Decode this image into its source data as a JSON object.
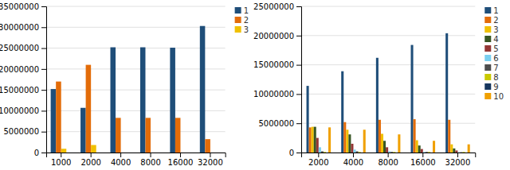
{
  "chart_data": [
    {
      "type": "bar",
      "categories": [
        1000,
        2000,
        4000,
        8000,
        16000,
        32000
      ],
      "series": [
        {
          "name": "1",
          "color": "#1F4E79",
          "values": [
            15200000,
            10700000,
            25200000,
            25200000,
            25100000,
            30300000
          ]
        },
        {
          "name": "2",
          "color": "#E36C09",
          "values": [
            17000000,
            21000000,
            8300000,
            8300000,
            8300000,
            3200000
          ]
        },
        {
          "name": "3",
          "color": "#F0C000",
          "values": [
            900000,
            1800000,
            0,
            0,
            0,
            0
          ]
        },
        {
          "color": "#375623",
          "values": [
            0,
            0,
            0,
            0,
            0,
            0
          ]
        }
      ],
      "ylim": [
        0,
        35000000
      ],
      "yticks": [
        0,
        5000000,
        10000000,
        15000000,
        20000000,
        25000000,
        30000000,
        35000000
      ],
      "grid": true,
      "legend": "right"
    },
    {
      "type": "bar",
      "categories": [
        2000,
        4000,
        8000,
        16000,
        32000
      ],
      "series": [
        {
          "name": "1",
          "color": "#1F4E79",
          "values": [
            11400000,
            13900000,
            16200000,
            18400000,
            20400000
          ]
        },
        {
          "name": "2",
          "color": "#E36C09",
          "values": [
            4300000,
            5200000,
            5600000,
            5700000,
            5600000
          ]
        },
        {
          "name": "3",
          "color": "#F0C000",
          "values": [
            4400000,
            3900000,
            3200000,
            2100000,
            1400000
          ]
        },
        {
          "name": "4",
          "color": "#375623",
          "values": [
            4400000,
            3100000,
            2000000,
            1200000,
            700000
          ]
        },
        {
          "name": "5",
          "color": "#943634",
          "values": [
            2500000,
            1500000,
            900000,
            600000,
            350000
          ]
        },
        {
          "name": "6",
          "color": "#7ACFF0",
          "values": [
            900000,
            500000,
            200000,
            100000,
            50000
          ]
        },
        {
          "name": "7",
          "color": "#4D4D4D",
          "values": [
            200000,
            200000,
            100000,
            100000,
            50000
          ]
        },
        {
          "name": "8",
          "color": "#C9C900",
          "values": [
            100000,
            100000,
            100000,
            100000,
            100000
          ]
        },
        {
          "name": "9",
          "color": "#17375E",
          "values": [
            0,
            0,
            0,
            0,
            0
          ]
        },
        {
          "name": "10",
          "color": "#F0A000",
          "values": [
            4300000,
            3900000,
            3100000,
            2000000,
            1400000
          ]
        }
      ],
      "ylim": [
        0,
        25000000
      ],
      "yticks": [
        0,
        5000000,
        10000000,
        15000000,
        20000000,
        25000000
      ],
      "grid": true,
      "legend": "right"
    }
  ]
}
